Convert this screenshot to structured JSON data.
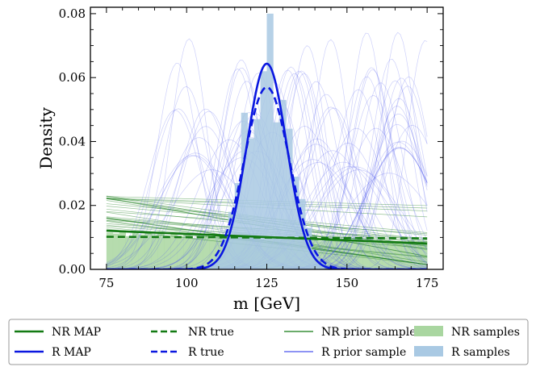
{
  "chart_data": {
    "type": "line",
    "xlabel": "m [GeV]",
    "ylabel": "Density",
    "xlim": [
      70,
      180
    ],
    "ylim": [
      0,
      0.082
    ],
    "xticks": [
      75,
      100,
      125,
      150,
      175
    ],
    "xtick_labels": [
      "75",
      "100",
      "125",
      "150",
      "175"
    ],
    "yticks": [
      0,
      0.02,
      0.04,
      0.06,
      0.08
    ],
    "ytick_labels": [
      "0.00",
      "0.02",
      "0.04",
      "0.06",
      "0.08"
    ],
    "legend_placement": "below plot, framed, 4 columns",
    "legend": [
      {
        "label": "NR MAP",
        "color": "#137a13",
        "style": "solid-thick"
      },
      {
        "label": "R MAP",
        "color": "#0a17e0",
        "style": "solid-thick"
      },
      {
        "label": "NR true",
        "color": "#137a13",
        "style": "dashed-thick"
      },
      {
        "label": "R true",
        "color": "#0a17e0",
        "style": "dashed-thick"
      },
      {
        "label": "NR prior sample",
        "color": "#137a13",
        "style": "solid-thin"
      },
      {
        "label": "R prior sample",
        "color": "#4a55ee",
        "style": "solid-thin"
      },
      {
        "label": "NR samples",
        "color": "#a9d6a0",
        "style": "patch"
      },
      {
        "label": "R samples",
        "color": "#a9c9e3",
        "style": "patch"
      }
    ],
    "series": [
      {
        "name": "NR MAP",
        "kind": "line",
        "x": [
          75,
          175
        ],
        "y": [
          0.0121,
          0.0081
        ]
      },
      {
        "name": "R MAP",
        "kind": "gaussian",
        "mean": 125,
        "sd": 6.2
      },
      {
        "name": "NR true",
        "kind": "line",
        "x": [
          75,
          175
        ],
        "y": [
          0.0102,
          0.0097
        ]
      },
      {
        "name": "R true",
        "kind": "gaussian",
        "mean": 125,
        "sd": 7.0
      },
      {
        "name": "NR samples",
        "kind": "histogram",
        "bin_edges": [
          75,
          77,
          79,
          81,
          83,
          85,
          87,
          89,
          91,
          93,
          95,
          97,
          99,
          101,
          103,
          105,
          107,
          109,
          111,
          113,
          115,
          117,
          119,
          121,
          123,
          125,
          127,
          129,
          131,
          133,
          135,
          137,
          139,
          141,
          143,
          145,
          147,
          149,
          151,
          153,
          155,
          157,
          159,
          161,
          163,
          165,
          167,
          169,
          171,
          173,
          175
        ],
        "heights": [
          0.0115,
          0.0112,
          0.0122,
          0.0104,
          0.0118,
          0.0109,
          0.0113,
          0.0107,
          0.0119,
          0.0101,
          0.0111,
          0.0105,
          0.0114,
          0.0098,
          0.0106,
          0.0112,
          0.0096,
          0.0108,
          0.0101,
          0.0107,
          0.0095,
          0.0103,
          0.0099,
          0.0104,
          0.0093,
          0.0101,
          0.0097,
          0.0102,
          0.0092,
          0.0099,
          0.0095,
          0.0094,
          0.0098,
          0.0089,
          0.0096,
          0.0092,
          0.0095,
          0.0088,
          0.0093,
          0.009,
          0.0091,
          0.0087,
          0.0092,
          0.0086,
          0.0089,
          0.0088,
          0.0085,
          0.009,
          0.0084,
          0.0087
        ]
      },
      {
        "name": "R samples",
        "kind": "histogram",
        "bin_edges": [
          105,
          107,
          109,
          111,
          113,
          115,
          117,
          119,
          121,
          123,
          125,
          127,
          129,
          131,
          133,
          135,
          137,
          139,
          141,
          143
        ],
        "heights": [
          0.001,
          0.002,
          0.005,
          0.01,
          0.018,
          0.027,
          0.049,
          0.041,
          0.047,
          0.062,
          0.08,
          0.046,
          0.053,
          0.044,
          0.029,
          0.022,
          0.013,
          0.006,
          0.002
        ]
      },
      {
        "name": "NR prior sample",
        "kind": "family",
        "count": 30,
        "intercept_at_75": [
          0.0125,
          0.023
        ],
        "slope_per_gev": [
          -0.00019,
          -2e-05
        ]
      },
      {
        "name": "R prior sample",
        "kind": "family",
        "count": 80,
        "mean_range": [
          95,
          175
        ],
        "peak_range": [
          0.03,
          0.075
        ]
      }
    ]
  }
}
